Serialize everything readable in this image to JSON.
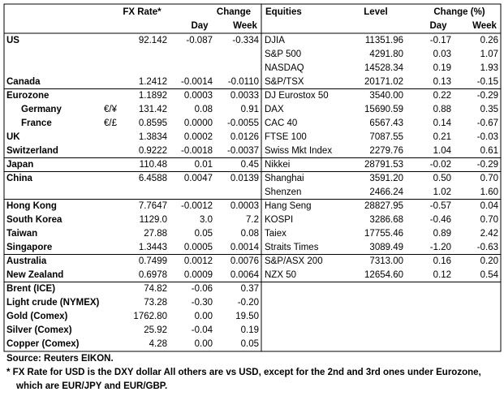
{
  "table": {
    "header": {
      "fx_rate": "FX Rate*",
      "change": "Change",
      "day": "Day",
      "week": "Week",
      "equities": "Equities",
      "level": "Level",
      "change_pct": "Change (%)",
      "eq_day": "Day",
      "eq_week": "Week"
    },
    "rows": [
      [
        "US",
        null,
        "92.142",
        "-0.087",
        "-0.334",
        "DJIA",
        "11351.96",
        "-0.17",
        "0.26"
      ],
      [
        null,
        null,
        null,
        null,
        null,
        "S&P 500",
        "4291.80",
        "0.03",
        "1.07"
      ],
      [
        null,
        null,
        null,
        null,
        null,
        "NASDAQ",
        "14528.34",
        "0.19",
        "1.93"
      ],
      [
        "Canada",
        null,
        "1.2412",
        "-0.0014",
        "-0.0110",
        "S&P/TSX",
        "20171.02",
        "0.13",
        "-0.15"
      ],
      [
        "Eurozone",
        null,
        "1.1892",
        "0.0003",
        "0.0033",
        "DJ Eurostox 50",
        "3540.00",
        "0.22",
        "-0.29"
      ],
      [
        "Germany",
        "€/¥",
        "131.42",
        "0.08",
        "0.91",
        "DAX",
        "15690.59",
        "0.88",
        "0.35"
      ],
      [
        "France",
        "€/£",
        "0.8595",
        "0.0000",
        "-0.0055",
        "CAC 40",
        "6567.43",
        "0.14",
        "-0.67"
      ],
      [
        "UK",
        null,
        "1.3834",
        "0.0002",
        "0.0126",
        "FTSE 100",
        "7087.55",
        "0.21",
        "-0.03"
      ],
      [
        "Switzerland",
        null,
        "0.9222",
        "-0.0018",
        "-0.0037",
        "Swiss Mkt Index",
        "2279.76",
        "1.04",
        "0.61"
      ],
      [
        "Japan",
        null,
        "110.48",
        "0.01",
        "0.45",
        "Nikkei",
        "28791.53",
        "-0.02",
        "-0.29"
      ],
      [
        "China",
        null,
        "6.4588",
        "0.0047",
        "0.0139",
        "Shanghai",
        "3591.20",
        "0.50",
        "0.70"
      ],
      [
        null,
        null,
        null,
        null,
        null,
        "Shenzen",
        "2466.24",
        "1.02",
        "1.60"
      ],
      [
        "Hong Kong",
        null,
        "7.7647",
        "-0.0012",
        "0.0003",
        "Hang Seng",
        "28827.95",
        "-0.57",
        "0.04"
      ],
      [
        "South Korea",
        null,
        "1129.0",
        "3.0",
        "7.2",
        "KOSPI",
        "3286.68",
        "-0.46",
        "0.70"
      ],
      [
        "Taiwan",
        null,
        "27.88",
        "0.05",
        "0.08",
        "Taiex",
        "17755.46",
        "0.89",
        "2.42"
      ],
      [
        "Singapore",
        null,
        "1.3443",
        "0.0005",
        "0.0014",
        "Straits Times",
        "3089.49",
        "-1.20",
        "-0.63"
      ],
      [
        "Australia",
        null,
        "0.7499",
        "0.0012",
        "0.0076",
        "S&P/ASX 200",
        "7313.00",
        "0.16",
        "0.20"
      ],
      [
        "New Zealand",
        null,
        "0.6978",
        "0.0009",
        "0.0064",
        "NZX 50",
        "12654.60",
        "0.12",
        "0.54"
      ],
      [
        "Brent (ICE)",
        null,
        "74.82",
        "-0.06",
        "0.37",
        null,
        null,
        null,
        null
      ],
      [
        "Light crude (NYMEX)",
        null,
        "73.28",
        "-0.30",
        "-0.20",
        null,
        null,
        null,
        null
      ],
      [
        "Gold (Comex)",
        null,
        "1762.80",
        "0.00",
        "19.50",
        null,
        null,
        null,
        null
      ],
      [
        "Silver (Comex)",
        null,
        "25.92",
        "-0.04",
        "0.19",
        null,
        null,
        null,
        null
      ],
      [
        "Copper (Comex)",
        null,
        "4.28",
        "0.00",
        "0.05",
        null,
        null,
        null,
        null
      ]
    ]
  },
  "footer": {
    "source": "Source:  Reuters EIKON.",
    "note_1": "* FX Rate for USD is the DXY dollar  All others are vs USD, except for the 2nd and 3rd ones under Eurozone,",
    "note_2": "which are EUR/JPY and EUR/GBP."
  }
}
